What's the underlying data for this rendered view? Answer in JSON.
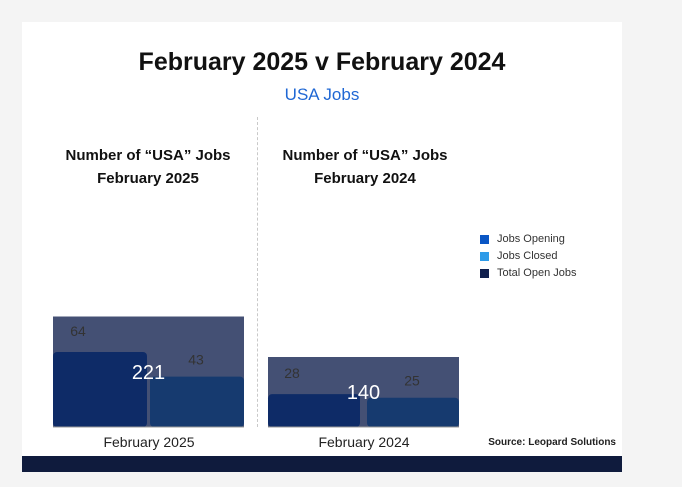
{
  "title": "February 2025 v February 2024",
  "subtitle": "USA Jobs",
  "source": "Source: Leopard Solutions",
  "colors": {
    "jobs_opening": "#0a56c4",
    "jobs_closed": "#2e9be8",
    "total_open_jobs": "#0f1f4d"
  },
  "legend": [
    {
      "label": "Jobs Opening",
      "color": "#0a56c4"
    },
    {
      "label": "Jobs Closed",
      "color": "#2e9be8"
    },
    {
      "label": "Total Open Jobs",
      "color": "#0f1f4d"
    }
  ],
  "chart_data": [
    {
      "type": "bar",
      "title": [
        "Number of “USA” Jobs",
        "February 2025"
      ],
      "categories": [
        "February 2025"
      ],
      "series": [
        {
          "name": "Jobs Opening",
          "values": [
            64
          ]
        },
        {
          "name": "Jobs Closed",
          "values": [
            43
          ]
        },
        {
          "name": "Total Open Jobs",
          "values": [
            221
          ]
        }
      ]
    },
    {
      "type": "bar",
      "title": [
        "Number of “USA” Jobs",
        "February 2024"
      ],
      "categories": [
        "February 2024"
      ],
      "series": [
        {
          "name": "Jobs Opening",
          "values": [
            28
          ]
        },
        {
          "name": "Jobs Closed",
          "values": [
            25
          ]
        },
        {
          "name": "Total Open Jobs",
          "values": [
            140
          ]
        }
      ]
    }
  ]
}
